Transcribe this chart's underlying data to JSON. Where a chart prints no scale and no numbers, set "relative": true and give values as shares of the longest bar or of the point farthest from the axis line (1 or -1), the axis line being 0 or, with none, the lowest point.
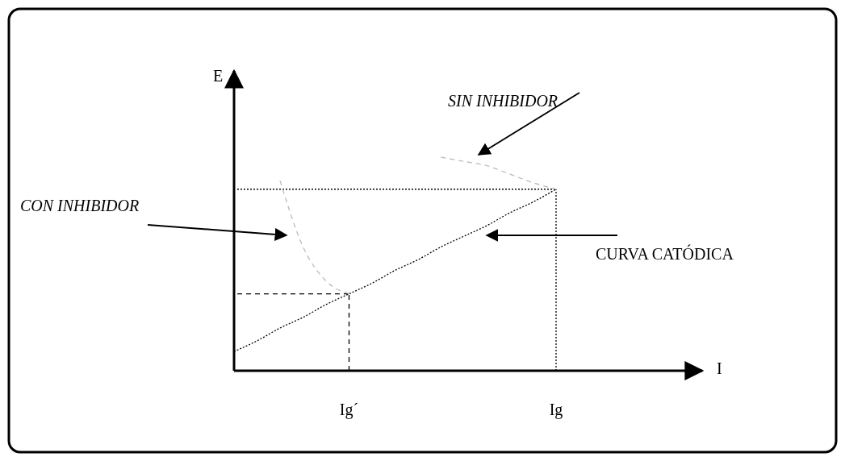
{
  "chart_data": {
    "type": "line",
    "relative": true,
    "xlabel": "I",
    "ylabel": "E",
    "grid": false,
    "marker": "none",
    "categories": [
      null,
      null,
      null,
      null,
      null,
      "Ig´",
      null,
      null,
      null,
      null,
      null,
      null,
      null,
      null,
      "Ig",
      null,
      null,
      null,
      null,
      null,
      null
    ],
    "series": [
      {
        "color": "#000000",
        "line_style": "dotted",
        "values": [
          0.09,
          0.14,
          0.2,
          0.25,
          0.31,
          0.36,
          0.41,
          0.47,
          0.52,
          0.58,
          0.63,
          0.68,
          0.74,
          0.79,
          0.85,
          null,
          null,
          null,
          null,
          null,
          null
        ]
      },
      {
        "color": "#bbbbbb",
        "line_style": "dashed",
        "values": [
          null,
          null,
          null,
          null,
          null,
          null,
          null,
          null,
          null,
          1.0,
          0.98,
          0.96,
          0.92,
          0.88,
          0.85,
          null,
          null,
          null,
          null,
          null,
          null
        ]
      },
      {
        "color": "#bbbbbb",
        "line_style": "dashed",
        "values": [
          null,
          null,
          0.89,
          0.58,
          0.42,
          0.36,
          null,
          null,
          null,
          null,
          null,
          null,
          null,
          null,
          null,
          null,
          null,
          null,
          null,
          null,
          null
        ]
      }
    ],
    "ref_lines": [
      {
        "axis": "y",
        "value": 0.85,
        "line_style": "dotted",
        "color": "#000000"
      },
      {
        "axis": "x",
        "value": "Ig",
        "line_style": "dotted",
        "color": "#000000"
      },
      {
        "axis": "y",
        "value": 0.36,
        "line_style": "dashed",
        "color": "#000000"
      },
      {
        "axis": "x",
        "value": "Ig´",
        "line_style": "dashed",
        "color": "#000000"
      }
    ],
    "annotations": [
      "SIN INHIBIDOR",
      "CON INHIBIDOR",
      "CURVA CATÓDICA"
    ]
  }
}
